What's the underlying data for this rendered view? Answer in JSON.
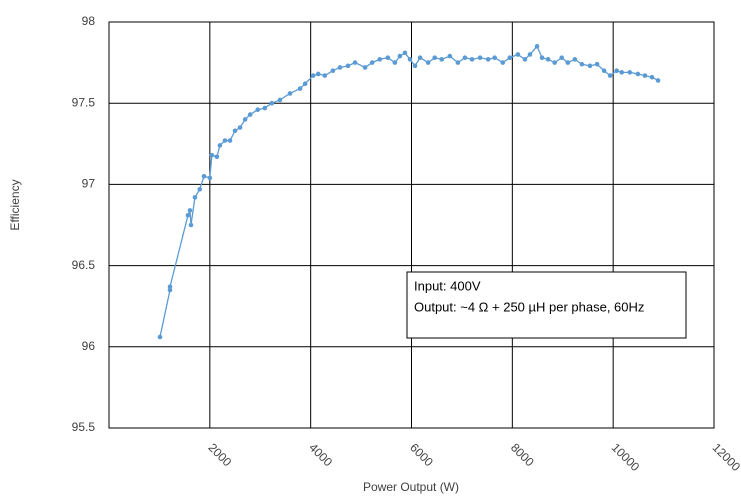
{
  "chart_data": {
    "type": "scatter-line",
    "x_label": "Power Output (W)",
    "y_label": "Efficiency",
    "annotation": [
      "Input: 400V",
      "Output: ~4 Ω + 250 µH per phase, 60Hz"
    ],
    "color": "#5b9bd5",
    "grid": true,
    "xlim": [
      0,
      12000
    ],
    "xticks": [
      2000,
      4000,
      6000,
      8000,
      10000,
      12000
    ],
    "ylim": [
      95.5,
      98
    ],
    "yticks": [
      95.5,
      96,
      96.5,
      97,
      97.5,
      98
    ],
    "x": [
      1011,
      1210,
      1210,
      1567,
      1606,
      1626,
      1705,
      1800,
      1884,
      2000,
      2040,
      2140,
      2200,
      2300,
      2400,
      2500,
      2600,
      2700,
      2800,
      2950,
      3090,
      3230,
      3390,
      3590,
      3790,
      3890,
      4050,
      4150,
      4280,
      4440,
      4580,
      4740,
      4880,
      5080,
      5220,
      5370,
      5530,
      5670,
      5770,
      5870,
      5970,
      6070,
      6170,
      6330,
      6460,
      6600,
      6760,
      6920,
      7060,
      7200,
      7360,
      7520,
      7650,
      7810,
      7950,
      8110,
      8250,
      8350,
      8490,
      8590,
      8710,
      8840,
      8980,
      9100,
      9240,
      9380,
      9540,
      9680,
      9820,
      9940,
      10070,
      10170,
      10330,
      10490,
      10630,
      10770,
      10890
    ],
    "values": [
      96.06,
      96.35,
      96.37,
      96.81,
      96.84,
      96.75,
      96.92,
      96.97,
      97.05,
      97.04,
      97.18,
      97.17,
      97.24,
      97.27,
      97.27,
      97.33,
      97.35,
      97.4,
      97.43,
      97.46,
      97.47,
      97.5,
      97.52,
      97.56,
      97.59,
      97.62,
      97.67,
      97.68,
      97.67,
      97.7,
      97.72,
      97.73,
      97.75,
      97.72,
      97.75,
      97.77,
      97.78,
      97.75,
      97.79,
      97.81,
      97.77,
      97.73,
      97.78,
      97.75,
      97.78,
      97.77,
      97.79,
      97.75,
      97.78,
      97.77,
      97.78,
      97.77,
      97.78,
      97.75,
      97.78,
      97.8,
      97.77,
      97.8,
      97.85,
      97.78,
      97.77,
      97.75,
      97.78,
      97.75,
      97.77,
      97.74,
      97.73,
      97.74,
      97.7,
      97.67,
      97.7,
      97.69,
      97.69,
      97.68,
      97.67,
      97.66,
      97.64
    ]
  }
}
